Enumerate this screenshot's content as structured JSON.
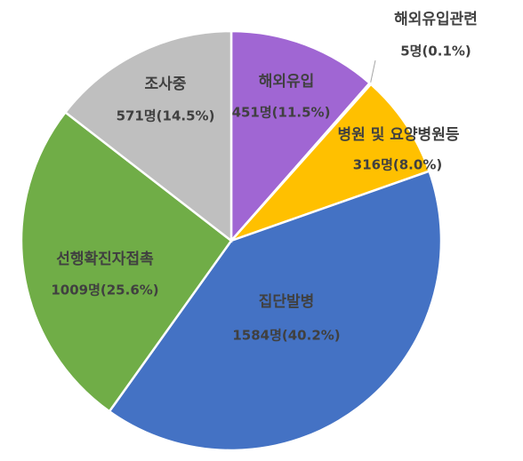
{
  "chart_data": {
    "type": "pie",
    "categories": [
      "해외유입",
      "해외유입관련",
      "병원 및 요양병원등",
      "집단발병",
      "선행확진자접촉",
      "조사중"
    ],
    "values": [
      451,
      5,
      316,
      1584,
      1009,
      571
    ],
    "value_labels": [
      "451명(11.5%)",
      "5명(0.1%)",
      "316명(8.0%)",
      "1584명(40.2%)",
      "1009명(25.6%)",
      "571명(14.5%)"
    ],
    "colors": [
      "#a066d3",
      "#7f7f7f",
      "#ffc000",
      "#4472c4",
      "#70ad47",
      "#bfbfbf"
    ]
  }
}
